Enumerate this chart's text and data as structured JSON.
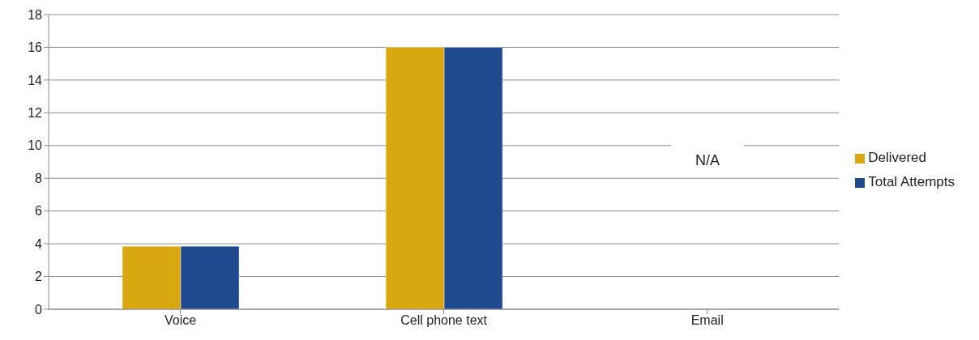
{
  "chart_data": {
    "type": "bar",
    "categories": [
      "Voice",
      "Cell phone text",
      "Email"
    ],
    "series": [
      {
        "name": "Delivered",
        "color": "#d9a70f",
        "values": [
          3.85,
          16,
          null
        ]
      },
      {
        "name": "Total Attempts",
        "color": "#1f4b8e",
        "values": [
          3.85,
          16,
          null
        ]
      }
    ],
    "ylim": [
      0,
      18
    ],
    "yticks": [
      0,
      2,
      4,
      6,
      8,
      10,
      12,
      14,
      16,
      18
    ],
    "grid": "y",
    "legend": "right",
    "annotations": [
      "N/A"
    ]
  }
}
